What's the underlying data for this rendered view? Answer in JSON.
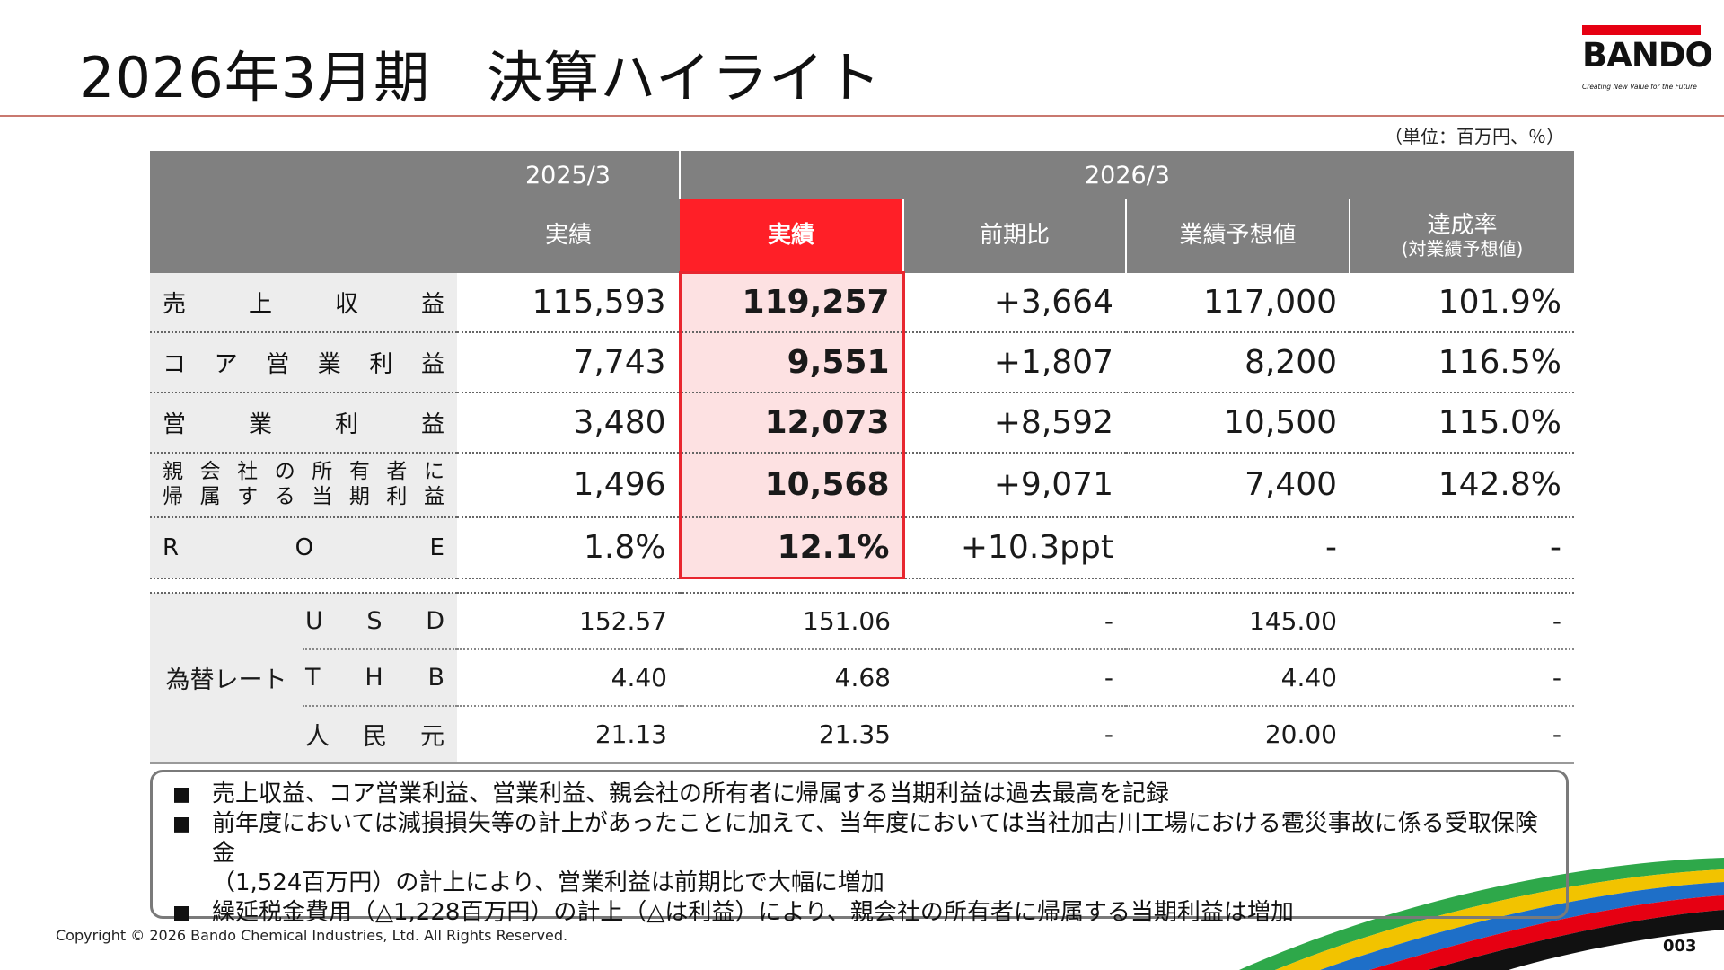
{
  "title": "2026年3月期　決算ハイライト",
  "logo": {
    "brand": "BANDO",
    "tagline": "Creating New Value for the Future"
  },
  "unit_note": "（単位：百万円、％）",
  "table": {
    "period_prev": "2025/3",
    "period_curr": "2026/3",
    "columns": {
      "prev_actual": "実績",
      "curr_actual": "実績",
      "yoy": "前期比",
      "forecast": "業績予想値",
      "achievement": "達成率",
      "achievement_note": "(対業績予想値)"
    },
    "rows": [
      {
        "label_chars": [
          "売",
          "上",
          "収",
          "益"
        ],
        "prev": "115,593",
        "curr": "119,257",
        "yoy": "+3,664",
        "forecast": "117,000",
        "rate": "101.9%"
      },
      {
        "label_chars": [
          "コ",
          "ア",
          "営",
          "業",
          "利",
          "益"
        ],
        "prev": "7,743",
        "curr": "9,551",
        "yoy": "+1,807",
        "forecast": "8,200",
        "rate": "116.5%"
      },
      {
        "label_chars": [
          "営",
          "業",
          "利",
          "益"
        ],
        "prev": "3,480",
        "curr": "12,073",
        "yoy": "+8,592",
        "forecast": "10,500",
        "rate": "115.0%"
      },
      {
        "label_line1": [
          "親",
          "会",
          "社",
          "の",
          "所",
          "有",
          "者",
          "に"
        ],
        "label_line2": [
          "帰",
          "属",
          "す",
          "る",
          "当",
          "期",
          "利",
          "益"
        ],
        "prev": "1,496",
        "curr": "10,568",
        "yoy": "+9,071",
        "forecast": "7,400",
        "rate": "142.8%"
      },
      {
        "label_chars": [
          "R",
          "O",
          "E"
        ],
        "prev": "1.8%",
        "curr": "12.1%",
        "yoy": "+10.3ppt",
        "forecast": "-",
        "rate": "-"
      }
    ],
    "fx": {
      "header": "為替レート",
      "rows": [
        {
          "label_chars": [
            "U",
            "S",
            "D"
          ],
          "prev": "152.57",
          "curr": "151.06",
          "yoy": "-",
          "forecast": "145.00",
          "rate": "-"
        },
        {
          "label_chars": [
            "T",
            "H",
            "B"
          ],
          "prev": "4.40",
          "curr": "4.68",
          "yoy": "-",
          "forecast": "4.40",
          "rate": "-"
        },
        {
          "label_chars": [
            "人",
            "民",
            "元"
          ],
          "prev": "21.13",
          "curr": "21.35",
          "yoy": "-",
          "forecast": "20.00",
          "rate": "-"
        }
      ]
    }
  },
  "notes": [
    {
      "bullet": "■",
      "text": "売上収益、コア営業利益、営業利益、親会社の所有者に帰属する当期利益は過去最高を記録"
    },
    {
      "bullet": "■",
      "text": "前年度においては減損損失等の計上があったことに加えて、当年度においては当社加古川工場における雹災事故に係る受取保険金",
      "text2": "（1,524百万円）の計上により、営業利益は前期比で大幅に増加"
    },
    {
      "bullet": "■",
      "text": "繰延税金費用（△1,228百万円）の計上（△は利益）により、親会社の所有者に帰属する当期利益は増加"
    }
  ],
  "copyright": "Copyright © 2026 Bando Chemical Industries, Ltd. All Rights Reserved.",
  "page_number": "003",
  "colors": {
    "accent_red": "#ff1f27",
    "header_gray": "#808080",
    "highlight_pink": "#fde1e2",
    "label_bg": "#ededed"
  }
}
